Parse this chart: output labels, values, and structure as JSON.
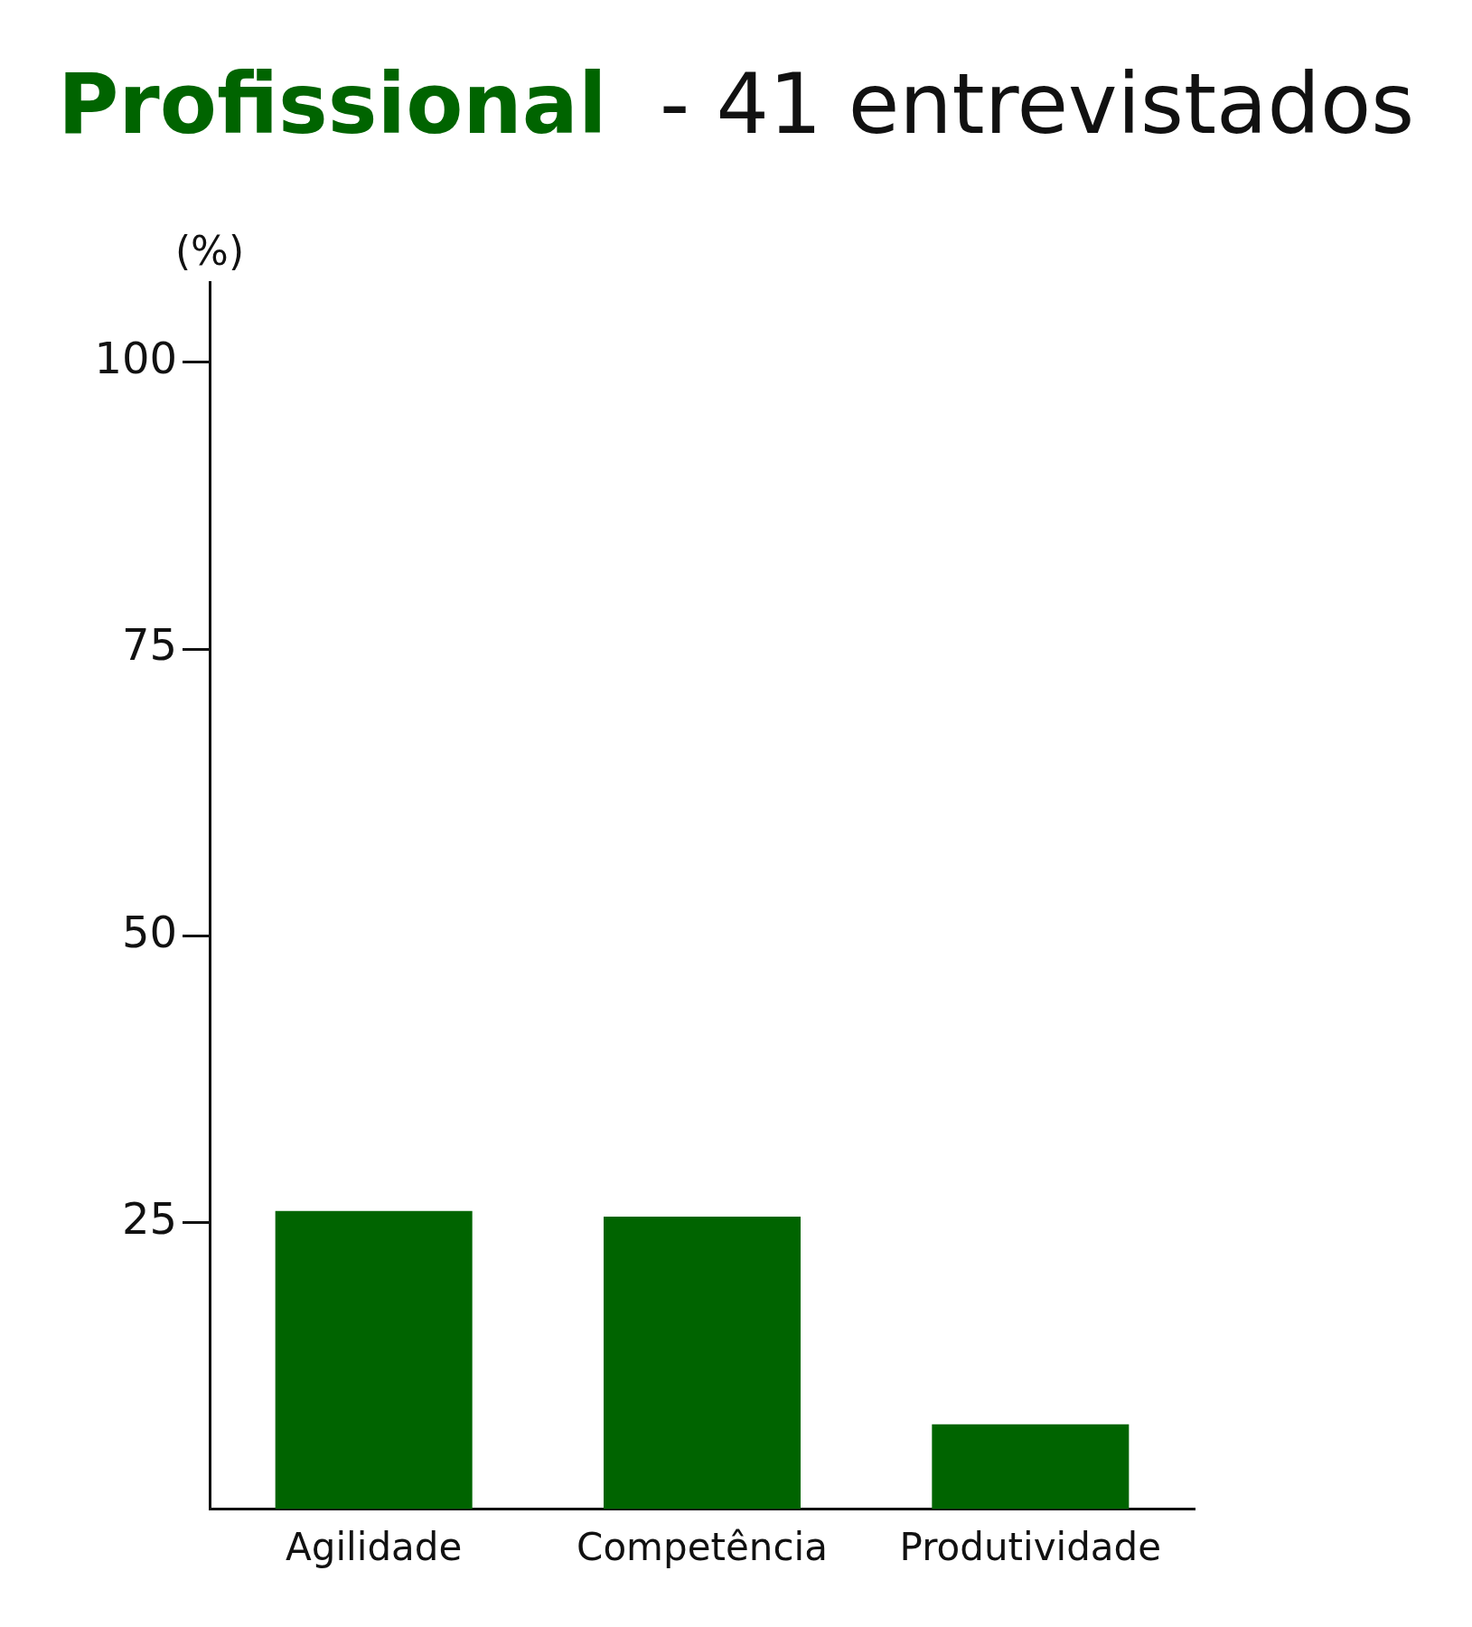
{
  "chart_data": {
    "type": "bar",
    "title": "Profissional - 41 entrevistados",
    "ylabel": "(%)",
    "categories": [
      "Agilidade",
      "Competência",
      "Produtividade"
    ],
    "series": [
      {
        "color": "#006400",
        "values": [
          26,
          25.5,
          7.4
        ]
      }
    ],
    "ylim": [
      0,
      107
    ],
    "yticks": [
      25,
      50,
      75,
      100
    ],
    "grid": false,
    "legend": false
  }
}
